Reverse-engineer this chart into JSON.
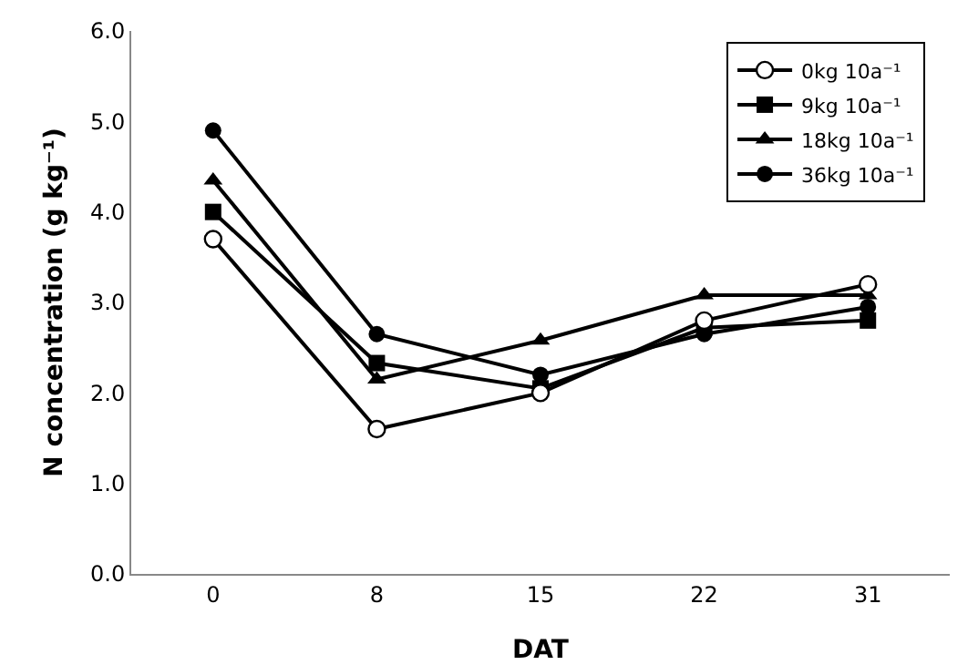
{
  "chart_data": {
    "type": "line",
    "xlabel": "DAT",
    "ylabel": "N concentration (g kg⁻¹)",
    "categories": [
      "0",
      "8",
      "15",
      "22",
      "31"
    ],
    "series": [
      {
        "name": "0kg 10a⁻¹",
        "color": "#000000",
        "marker": "circle-open",
        "values": [
          3.7,
          1.6,
          2.0,
          2.8,
          3.2
        ]
      },
      {
        "name": "9kg 10a⁻¹",
        "color": "#000000",
        "marker": "square",
        "values": [
          4.0,
          2.33,
          2.05,
          2.72,
          2.8
        ]
      },
      {
        "name": "18kg 10a⁻¹",
        "color": "#000000",
        "marker": "triangle",
        "values": [
          4.35,
          2.15,
          2.58,
          3.08,
          3.08
        ]
      },
      {
        "name": "36kg 10a⁻¹",
        "color": "#000000",
        "marker": "circle",
        "values": [
          4.9,
          2.65,
          2.2,
          2.65,
          2.95
        ]
      }
    ],
    "ylim": [
      0,
      6
    ],
    "yticks": [
      {
        "value": 0,
        "label": "0.0"
      },
      {
        "value": 1,
        "label": "1.0"
      },
      {
        "value": 2,
        "label": "2.0"
      },
      {
        "value": 3,
        "label": "3.0"
      },
      {
        "value": 4,
        "label": "4.0"
      },
      {
        "value": 5,
        "label": "5.0"
      },
      {
        "value": 6,
        "label": "6.0"
      }
    ],
    "grid": false,
    "legend": "top right",
    "line_style": "solid"
  }
}
